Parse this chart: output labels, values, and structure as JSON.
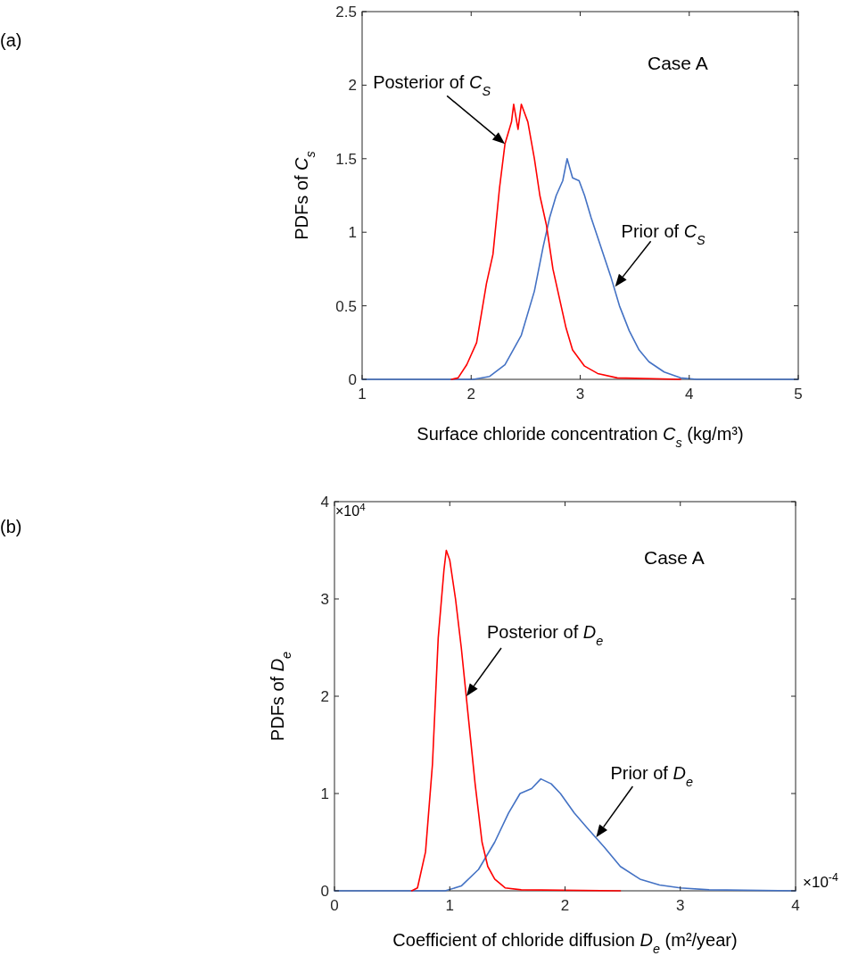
{
  "chart_data": [
    {
      "type": "line",
      "xlabel": "Surface chloride concentration C$_{s}$ (kg/m³)",
      "ylabel": "PDFs of C$_{s}$",
      "xlim": [
        1,
        5
      ],
      "ylim": [
        0,
        2.5
      ],
      "xticks": [
        1,
        2,
        3,
        4,
        5
      ],
      "yticks": [
        0,
        0.5,
        1,
        1.5,
        2,
        2.5
      ],
      "grid": false,
      "series": [
        {
          "color": "#4472c4",
          "x": [
            1,
            2.02,
            2.17,
            2.31,
            2.46,
            2.58,
            2.66,
            2.72,
            2.78,
            2.84,
            2.88,
            2.93,
            2.99,
            3.04,
            3.1,
            3.19,
            3.28,
            3.36,
            3.45,
            3.54,
            3.63,
            3.77,
            3.92,
            4.07,
            5
          ],
          "values": [
            0,
            0,
            0.02,
            0.1,
            0.3,
            0.6,
            0.9,
            1.1,
            1.25,
            1.35,
            1.5,
            1.37,
            1.35,
            1.25,
            1.1,
            0.9,
            0.7,
            0.5,
            0.33,
            0.2,
            0.12,
            0.05,
            0.01,
            0,
            0
          ]
        },
        {
          "color": "#ff0000",
          "x": [
            1.82,
            1.88,
            1.96,
            2.05,
            2.14,
            2.2,
            2.26,
            2.31,
            2.37,
            2.39,
            2.43,
            2.46,
            2.52,
            2.58,
            2.63,
            2.69,
            2.75,
            2.81,
            2.87,
            2.93,
            3.04,
            3.16,
            3.34,
            3.92
          ],
          "values": [
            0,
            0.01,
            0.1,
            0.25,
            0.65,
            0.85,
            1.3,
            1.6,
            1.75,
            1.87,
            1.7,
            1.87,
            1.75,
            1.5,
            1.25,
            1.05,
            0.75,
            0.55,
            0.35,
            0.2,
            0.09,
            0.04,
            0.01,
            0
          ]
        }
      ],
      "annotations": [
        "(a)",
        "Case A",
        {
          "text": "Posterior of C$_{S}$",
          "x": 2.31,
          "y": 1.6
        },
        {
          "text": "Prior of C$_{S}$",
          "x": 3.32,
          "y": 0.63
        }
      ]
    },
    {
      "type": "line",
      "xlabel": "Coefficient of chloride diffusion D$_{e}$ (m²/year)",
      "ylabel": "PDFs of D$_{e}$",
      "xlim": [
        0,
        4
      ],
      "ylim": [
        0,
        4
      ],
      "xticks": [
        0,
        1,
        2,
        3,
        4
      ],
      "yticks": [
        0,
        1,
        2,
        3,
        4
      ],
      "grid": false,
      "series": [
        {
          "color": "#4472c4",
          "x": [
            0,
            0.96,
            1.1,
            1.25,
            1.39,
            1.51,
            1.61,
            1.71,
            1.79,
            1.88,
            1.96,
            2.08,
            2.19,
            2.34,
            2.48,
            2.65,
            2.82,
            3.0,
            3.25,
            4
          ],
          "values": [
            0,
            0,
            0.05,
            0.22,
            0.5,
            0.8,
            1.0,
            1.05,
            1.15,
            1.1,
            1.0,
            0.8,
            0.65,
            0.45,
            0.25,
            0.12,
            0.06,
            0.03,
            0.01,
            0
          ]
        },
        {
          "color": "#ff0000",
          "x": [
            0.67,
            0.72,
            0.79,
            0.85,
            0.9,
            0.95,
            0.97,
            1.0,
            1.05,
            1.1,
            1.16,
            1.22,
            1.28,
            1.33,
            1.39,
            1.48,
            1.62,
            2.48
          ],
          "values": [
            0,
            0.03,
            0.4,
            1.3,
            2.6,
            3.3,
            3.5,
            3.4,
            3.0,
            2.5,
            1.8,
            1.1,
            0.5,
            0.25,
            0.12,
            0.03,
            0.01,
            0
          ]
        }
      ],
      "annotations": [
        "(b)",
        "×10$^{4}$",
        "Case A",
        {
          "text": "Posterior of D$_{e}$",
          "x": 1.145,
          "y": 2.0
        },
        {
          "text": "Prior of D$_{e}$",
          "x": 2.27,
          "y": 0.55
        },
        "×10$^{-4}$"
      ]
    }
  ]
}
